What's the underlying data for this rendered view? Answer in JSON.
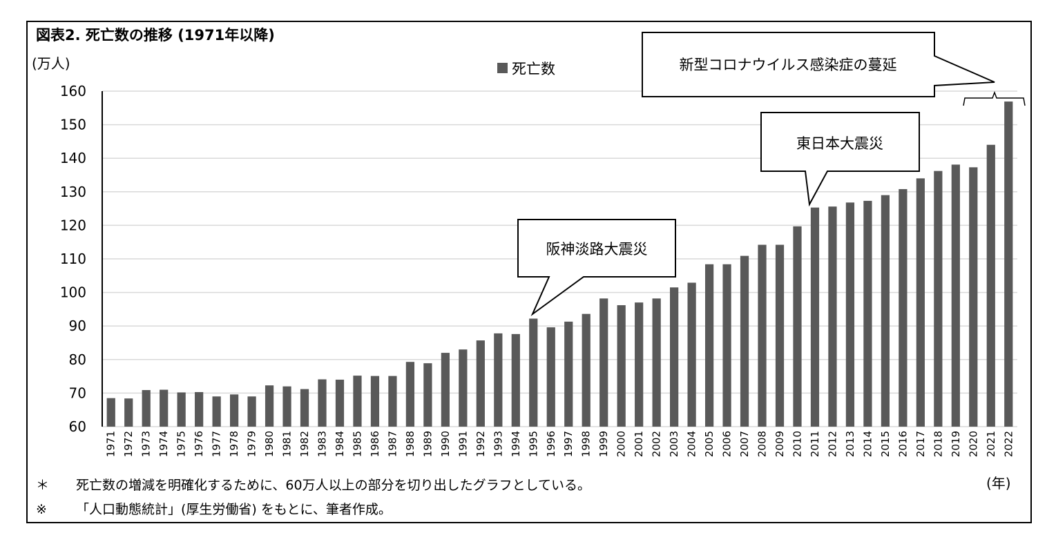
{
  "chart_data": {
    "type": "bar",
    "title": "図表2.  死亡数の推移 (1971年以降)",
    "y_unit_label": "(万人)",
    "x_unit_label": "(年)",
    "legend": [
      "死亡数"
    ],
    "legend_position": "top-center",
    "ylim": [
      60,
      160
    ],
    "y_ticks": [
      "60",
      "70",
      "80",
      "90",
      "100",
      "110",
      "120",
      "130",
      "140",
      "150",
      "160"
    ],
    "grid": true,
    "bar_color": "#595959",
    "categories": [
      "1971",
      "1972",
      "1973",
      "1974",
      "1975",
      "1976",
      "1977",
      "1978",
      "1979",
      "1980",
      "1981",
      "1982",
      "1983",
      "1984",
      "1985",
      "1986",
      "1987",
      "1988",
      "1989",
      "1990",
      "1991",
      "1992",
      "1993",
      "1994",
      "1995",
      "1996",
      "1997",
      "1998",
      "1999",
      "2000",
      "2001",
      "2002",
      "2003",
      "2004",
      "2005",
      "2006",
      "2007",
      "2008",
      "2009",
      "2010",
      "2011",
      "2012",
      "2013",
      "2014",
      "2015",
      "2016",
      "2017",
      "2018",
      "2019",
      "2020",
      "2021",
      "2022"
    ],
    "series": [
      {
        "name": "死亡数",
        "values": [
          68.5,
          68.4,
          70.9,
          71.0,
          70.2,
          70.3,
          69.0,
          69.6,
          69.0,
          72.3,
          72.0,
          71.2,
          74.1,
          74.0,
          75.2,
          75.1,
          75.1,
          79.3,
          78.9,
          82.0,
          83.0,
          85.7,
          87.8,
          87.6,
          92.2,
          89.6,
          91.3,
          93.6,
          98.2,
          96.2,
          97.0,
          98.2,
          101.5,
          102.9,
          108.4,
          108.4,
          110.9,
          114.2,
          114.2,
          119.7,
          125.3,
          125.6,
          126.8,
          127.3,
          129.0,
          130.8,
          134.0,
          136.2,
          138.1,
          137.3,
          144.0,
          156.9
        ]
      }
    ],
    "annotations": [
      {
        "text": "阪神淡路大震災",
        "category": "1995"
      },
      {
        "text": "東日本大震災",
        "category": "2011"
      },
      {
        "text": "新型コロナウイルス感染症の蔓延",
        "categories": [
          "2020",
          "2022"
        ]
      }
    ],
    "notes": [
      {
        "mark": "＊",
        "text": "死亡数の増減を明確化するために、60万人以上の部分を切り出したグラフとしている。"
      },
      {
        "mark": "※",
        "text": "「人口動態統計」(厚生労働省) をもとに、筆者作成。"
      }
    ]
  }
}
